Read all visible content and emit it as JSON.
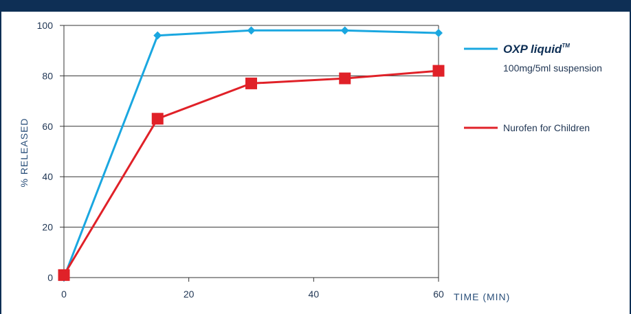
{
  "chart_data": {
    "type": "line",
    "xlabel": "TIME (MIN)",
    "ylabel": "% RELEASED",
    "xlim": [
      0,
      60
    ],
    "ylim": [
      0,
      100
    ],
    "xticks": [
      0,
      20,
      40,
      60
    ],
    "yticks": [
      0,
      20,
      40,
      60,
      80,
      100
    ],
    "grid": "horizontal",
    "legend_position": "right",
    "series": [
      {
        "name": "OXP liquid",
        "name_mark": "TM",
        "subtitle": "100mg/5ml suspension",
        "color": "#1aa7e0",
        "marker": "diamond",
        "x": [
          0,
          15,
          30,
          45,
          60
        ],
        "y": [
          0,
          96,
          98,
          98,
          97
        ]
      },
      {
        "name": "Nurofen for Children",
        "color": "#e02128",
        "marker": "square",
        "x": [
          0,
          15,
          30,
          45,
          60
        ],
        "y": [
          1,
          63,
          77,
          79,
          82
        ]
      }
    ]
  },
  "colors": {
    "frame": "#0e2f55",
    "grid": "#333333",
    "axis_title": "#2a4f7a"
  }
}
